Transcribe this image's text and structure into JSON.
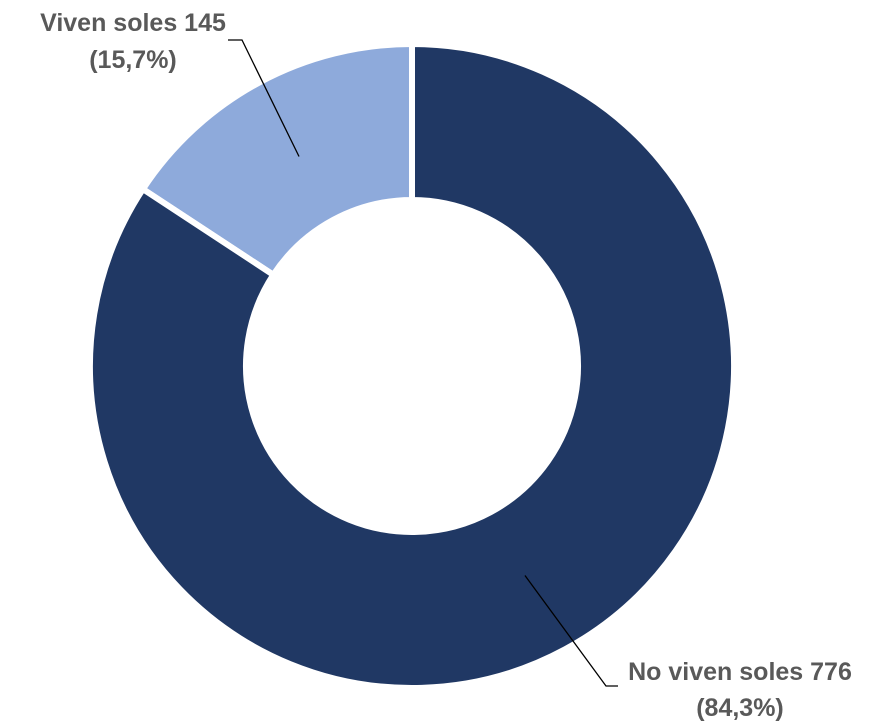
{
  "chart_data": {
    "type": "pie",
    "donut": true,
    "series": [
      {
        "name": "Viven soles",
        "value": 145,
        "percent_label": "(15,7%)",
        "label": "Viven soles 145",
        "color": "#8eaadb"
      },
      {
        "name": "No viven soles",
        "value": 776,
        "percent_label": "(84,3%)",
        "label": "No viven soles 776",
        "color": "#203864"
      }
    ],
    "label_color": "#595959",
    "leader_line_color": "#000000",
    "title": "",
    "legend": "none"
  }
}
